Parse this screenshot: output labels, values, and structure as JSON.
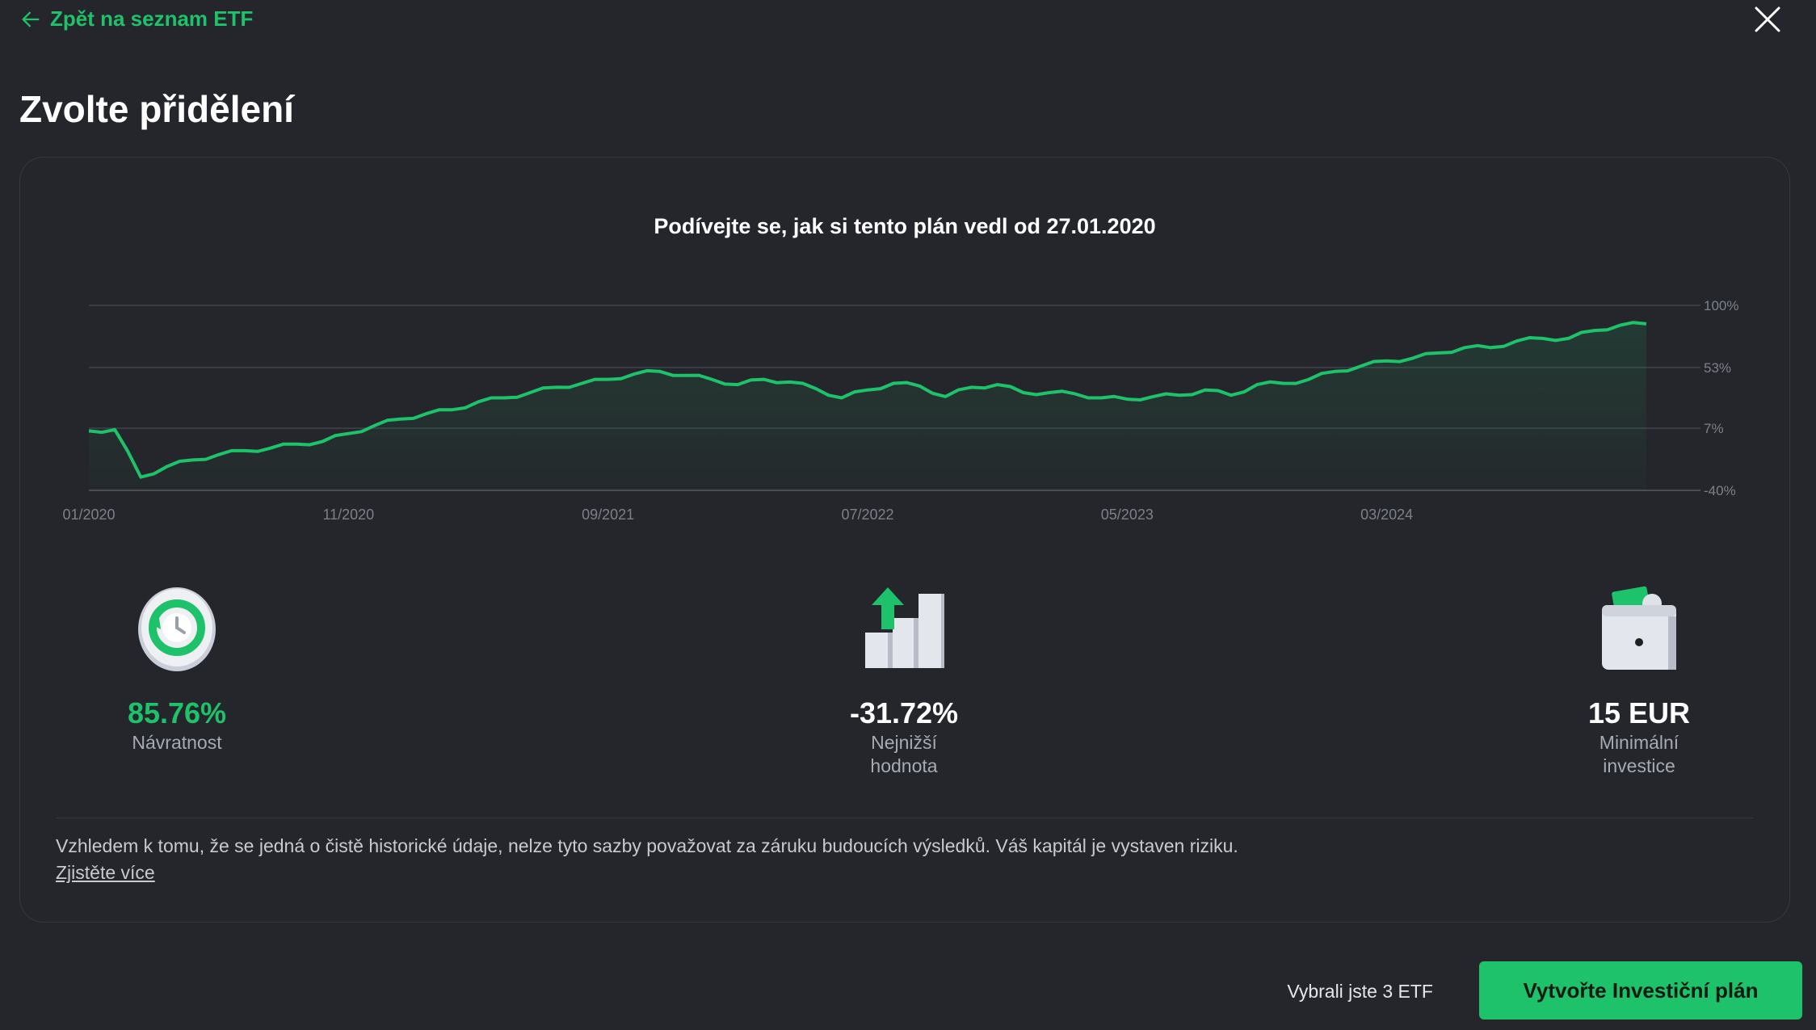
{
  "header": {
    "back_label": "Zpět na seznam ETF",
    "title": "Zvolte přidělení"
  },
  "chart": {
    "title": "Podívejte se, jak si tento plán vedl od 27.01.2020"
  },
  "chart_data": {
    "type": "line",
    "title": "Podívejte se, jak si tento plán vedl od 27.01.2020",
    "xlabel": "",
    "ylabel": "",
    "x_ticks": [
      "01/2020",
      "11/2020",
      "09/2021",
      "07/2022",
      "05/2023",
      "03/2024"
    ],
    "y_ticks": [
      "100%",
      "53%",
      "7%",
      "-40%"
    ],
    "y_tick_values": [
      100,
      53,
      7,
      -40
    ],
    "ylim": [
      -40,
      100
    ],
    "xlim": [
      "2020-01",
      "2025-01"
    ],
    "grid": true,
    "line_color": "#1ec26a",
    "series": [
      {
        "x": [
          "2020-01",
          "2020-02",
          "2020-03",
          "2020-04",
          "2020-05",
          "2020-06",
          "2020-07",
          "2020-08",
          "2020-09",
          "2020-10",
          "2020-11",
          "2020-12",
          "2021-01",
          "2021-02",
          "2021-03",
          "2021-04",
          "2021-05",
          "2021-06",
          "2021-07",
          "2021-08",
          "2021-09",
          "2021-10",
          "2021-11",
          "2021-12",
          "2022-01",
          "2022-02",
          "2022-03",
          "2022-04",
          "2022-05",
          "2022-06",
          "2022-07",
          "2022-08",
          "2022-09",
          "2022-10",
          "2022-11",
          "2022-12",
          "2023-01",
          "2023-02",
          "2023-03",
          "2023-04",
          "2023-05",
          "2023-06",
          "2023-07",
          "2023-08",
          "2023-09",
          "2023-10",
          "2023-11",
          "2023-12",
          "2024-01",
          "2024-02",
          "2024-03",
          "2024-04",
          "2024-05",
          "2024-06",
          "2024-07",
          "2024-08",
          "2024-09",
          "2024-10",
          "2024-11",
          "2024-12",
          "2025-01"
        ],
        "values": [
          5,
          6,
          -30,
          -22,
          -17,
          -13,
          -10,
          -8,
          -5,
          -3,
          3,
          9,
          14,
          18,
          21,
          27,
          30,
          34,
          38,
          41,
          44,
          48,
          50,
          47,
          44,
          40,
          44,
          42,
          37,
          30,
          36,
          41,
          39,
          31,
          38,
          40,
          34,
          34,
          33,
          30,
          29,
          31,
          32,
          36,
          32,
          40,
          41,
          44,
          50,
          54,
          58,
          60,
          64,
          68,
          68,
          73,
          75,
          75,
          81,
          85,
          86
        ]
      }
    ]
  },
  "stats": [
    {
      "icon": "clock-arrows-icon",
      "value": "85.76%",
      "label": "Návratnost"
    },
    {
      "icon": "bar-chart-arrow-icon",
      "value": "-31.72%",
      "label": "Nejnižší hodnota"
    },
    {
      "icon": "wallet-icon",
      "value": "15 EUR",
      "label": "Minimální investice"
    }
  ],
  "disclaimer": {
    "text": "Vzhledem k tomu, že se jedná o čistě historické údaje, nelze tyto sazby považovat za záruku budoucích výsledků. Váš kapitál je vystaven riziku.",
    "link": "Zjistěte více"
  },
  "footer": {
    "selected_text": "Vybrali jste 3 ETF",
    "cta_label": "Vytvořte Investiční plán"
  },
  "colors": {
    "background": "#24262b",
    "accent": "#1ec26a",
    "card_border": "#353841",
    "muted_text": "#a6aab3"
  }
}
